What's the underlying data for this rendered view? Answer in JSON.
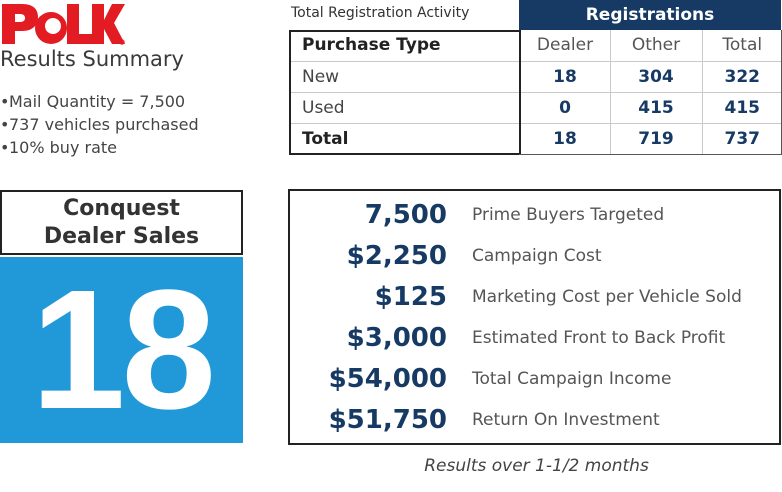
{
  "brand": {
    "logo_text": "POLK",
    "accent_color": "#e31b23"
  },
  "summary": {
    "title": "Results Summary",
    "bullets": [
      "Mail Quantity = 7,500",
      "737 vehicles purchased",
      "10% buy rate"
    ],
    "bullet_glyph": "•"
  },
  "registration": {
    "caption": "Total Registration Activity",
    "header": "Registrations",
    "header_color": "#163a63",
    "columns": [
      "Purchase Type",
      "Dealer",
      "Other",
      "Total"
    ],
    "rows": [
      {
        "type": "New",
        "dealer": "18",
        "other": "304",
        "total": "322"
      },
      {
        "type": "Used",
        "dealer": "0",
        "other": "415",
        "total": "415"
      },
      {
        "type": "Total",
        "dealer": "18",
        "other": "719",
        "total": "737"
      }
    ]
  },
  "conquest": {
    "title_line1": "Conquest",
    "title_line2": "Dealer Sales",
    "value": "18",
    "panel_color": "#2199d8"
  },
  "metrics": [
    {
      "value": "7,500",
      "label": "Prime Buyers Targeted"
    },
    {
      "value": "$2,250",
      "label": "Campaign Cost"
    },
    {
      "value": "$125",
      "label": "Marketing Cost per Vehicle Sold"
    },
    {
      "value": "$3,000",
      "label": "Estimated Front to Back Profit"
    },
    {
      "value": "$54,000",
      "label": "Total Campaign Income"
    },
    {
      "value": "$51,750",
      "label": "Return On Investment"
    }
  ],
  "footnote": "Results over 1-1/2 months"
}
